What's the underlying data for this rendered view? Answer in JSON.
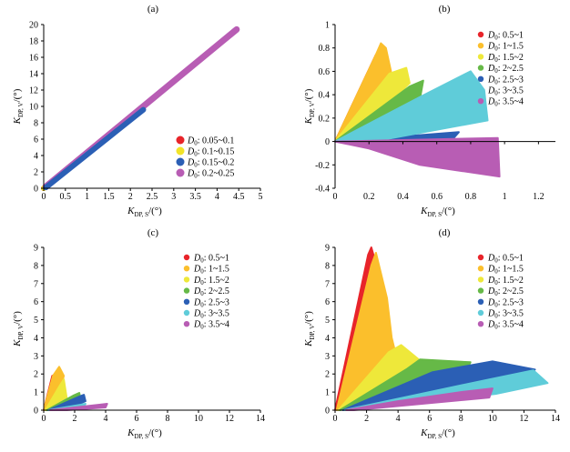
{
  "chart_data": [
    {
      "panel": "(a)",
      "type": "scatter",
      "xlabel_main": "K",
      "xlabel_sub": "DP, S",
      "xlabel_unit": "/(°)",
      "ylabel_main": "K",
      "ylabel_sub": "DP, V",
      "ylabel_unit": "/(°)",
      "xlim": [
        0,
        5
      ],
      "ylim": [
        0,
        20
      ],
      "xticks": [
        0,
        0.5,
        1,
        1.5,
        2,
        2.5,
        3,
        3.5,
        4,
        4.5,
        5
      ],
      "xtick_labels": [
        "0",
        "0.5",
        "1",
        "1.5",
        "2",
        "2.5",
        "3",
        "3.5",
        "4",
        "4.5",
        "5"
      ],
      "yticks": [
        0,
        2,
        4,
        6,
        8,
        10,
        12,
        14,
        16,
        18,
        20
      ],
      "ytick_labels": [
        "0",
        "2",
        "4",
        "6",
        "8",
        "10",
        "12",
        "14",
        "16",
        "18",
        "20"
      ],
      "legend_position": "bottom-right",
      "series": [
        {
          "name": "0.05~0.1",
          "color": "#e8242a",
          "shape": "band",
          "x": [
            0.0,
            0.12
          ],
          "y": [
            0.0,
            0.55
          ]
        },
        {
          "name": "0.1~0.15",
          "color": "#f2e429",
          "shape": "band",
          "x": [
            0.0,
            0.18
          ],
          "y": [
            0.0,
            0.7
          ]
        },
        {
          "name": "0.15~0.2",
          "color": "#2b5fb5",
          "shape": "band",
          "x": [
            0.05,
            2.3
          ],
          "y": [
            0.1,
            9.6
          ]
        },
        {
          "name": "0.2~0.25",
          "color": "#b85db4",
          "shape": "band",
          "x": [
            0.05,
            4.45
          ],
          "y": [
            0.2,
            19.4
          ]
        }
      ]
    },
    {
      "panel": "(b)",
      "type": "scatter",
      "xlabel_main": "K",
      "xlabel_sub": "DP, S",
      "xlabel_unit": "/(°)",
      "ylabel_main": "K",
      "ylabel_sub": "DP, V",
      "ylabel_unit": "/(°)",
      "xlim": [
        0,
        1.3
      ],
      "ylim": [
        -0.4,
        1
      ],
      "xticks": [
        0,
        0.2,
        0.4,
        0.6,
        0.8,
        1,
        1.2
      ],
      "xtick_labels": [
        "0",
        "0.2",
        "0.4",
        "0.6",
        "0.8",
        "1",
        "1.2"
      ],
      "yticks": [
        -0.4,
        -0.2,
        0,
        0.2,
        0.4,
        0.6,
        0.8,
        1
      ],
      "ytick_labels": [
        "-0.4",
        "-0.2",
        "0",
        "0.2",
        "0.4",
        "0.6",
        "0.8",
        "1"
      ],
      "legend_position": "top-right",
      "series": [
        {
          "name": "0.5~1",
          "color": "#e8242a",
          "shape": "fan",
          "tip": [
            0.24,
            0.74
          ]
        },
        {
          "name": "1~1.5",
          "color": "#fbbf2c",
          "shape": "fan",
          "tip": [
            0.28,
            0.84
          ]
        },
        {
          "name": "1.5~2",
          "color": "#eee83a",
          "shape": "fan",
          "tip": [
            0.42,
            0.63
          ]
        },
        {
          "name": "2~2.5",
          "color": "#66b947",
          "shape": "fan",
          "tip": [
            0.52,
            0.52
          ]
        },
        {
          "name": "2.5~3",
          "color": "#2b5fb5",
          "shape": "fan",
          "tip": [
            0.73,
            0.08
          ]
        },
        {
          "name": "3~3.5",
          "color": "#5fccd9",
          "shape": "fan",
          "tip": [
            0.82,
            0.6
          ]
        },
        {
          "name": "3.5~4",
          "color": "#b85db4",
          "shape": "fan",
          "tip": [
            0.97,
            -0.3
          ]
        }
      ]
    },
    {
      "panel": "(c)",
      "type": "scatter",
      "xlabel_main": "K",
      "xlabel_sub": "DP, S",
      "xlabel_unit": "/(°)",
      "ylabel_main": "K",
      "ylabel_sub": "DP, V",
      "ylabel_unit": "/(°)",
      "xlim": [
        0,
        14
      ],
      "ylim": [
        0,
        9
      ],
      "xticks": [
        0,
        2,
        4,
        6,
        8,
        10,
        12,
        14
      ],
      "xtick_labels": [
        "0",
        "2",
        "4",
        "6",
        "8",
        "10",
        "12",
        "14"
      ],
      "yticks": [
        0,
        1,
        2,
        3,
        4,
        5,
        6,
        7,
        8,
        9
      ],
      "ytick_labels": [
        "0",
        "1",
        "2",
        "3",
        "4",
        "5",
        "6",
        "7",
        "8",
        "9"
      ],
      "legend_position": "top-right",
      "series": [
        {
          "name": "0.5~1",
          "color": "#e8242a",
          "shape": "fan",
          "tip": [
            0.55,
            1.9
          ]
        },
        {
          "name": "1~1.5",
          "color": "#fbbf2c",
          "shape": "fan",
          "tip": [
            1.0,
            2.4
          ]
        },
        {
          "name": "1.5~2",
          "color": "#eee83a",
          "shape": "fan",
          "tip": [
            1.3,
            1.7
          ]
        },
        {
          "name": "2~2.5",
          "color": "#66b947",
          "shape": "fan",
          "tip": [
            2.3,
            0.95
          ]
        },
        {
          "name": "2.5~3",
          "color": "#2b5fb5",
          "shape": "fan",
          "tip": [
            2.6,
            0.85
          ]
        },
        {
          "name": "3~3.5",
          "color": "#5fccd9",
          "shape": "fan",
          "tip": [
            2.7,
            0.35
          ]
        },
        {
          "name": "3.5~4",
          "color": "#b85db4",
          "shape": "fan",
          "tip": [
            4.1,
            0.35
          ]
        }
      ]
    },
    {
      "panel": "(d)",
      "type": "scatter",
      "xlabel_main": "K",
      "xlabel_sub": "DP, S",
      "xlabel_unit": "/(°)",
      "ylabel_main": "K",
      "ylabel_sub": "DP, V",
      "ylabel_unit": "/(°)",
      "xlim": [
        0,
        14
      ],
      "ylim": [
        0,
        9
      ],
      "xticks": [
        0,
        2,
        4,
        6,
        8,
        10,
        12,
        14
      ],
      "xtick_labels": [
        "0",
        "2",
        "4",
        "6",
        "8",
        "10",
        "12",
        "14"
      ],
      "yticks": [
        0,
        1,
        2,
        3,
        4,
        5,
        6,
        7,
        8,
        9
      ],
      "ytick_labels": [
        "0",
        "1",
        "2",
        "3",
        "4",
        "5",
        "6",
        "7",
        "8",
        "9"
      ],
      "legend_position": "top-right",
      "series": [
        {
          "name": "0.5~1",
          "color": "#e8242a",
          "shape": "fan",
          "tip": [
            2.3,
            9.0
          ]
        },
        {
          "name": "1~1.5",
          "color": "#fbbf2c",
          "shape": "fan",
          "tip": [
            2.6,
            8.7
          ]
        },
        {
          "name": "1.5~2",
          "color": "#eee83a",
          "shape": "fan",
          "tip": [
            4.2,
            3.6
          ]
        },
        {
          "name": "2~2.5",
          "color": "#66b947",
          "shape": "fan",
          "tip": [
            5.4,
            2.8
          ]
        },
        {
          "name": "2.5~3",
          "color": "#2b5fb5",
          "shape": "fan",
          "tip": [
            10.0,
            2.7
          ]
        },
        {
          "name": "3~3.5",
          "color": "#5fccd9",
          "shape": "fan",
          "tip": [
            13.5,
            1.5
          ]
        },
        {
          "name": "3.5~4",
          "color": "#b85db4",
          "shape": "fan",
          "tip": [
            10.0,
            1.2
          ]
        }
      ]
    }
  ]
}
